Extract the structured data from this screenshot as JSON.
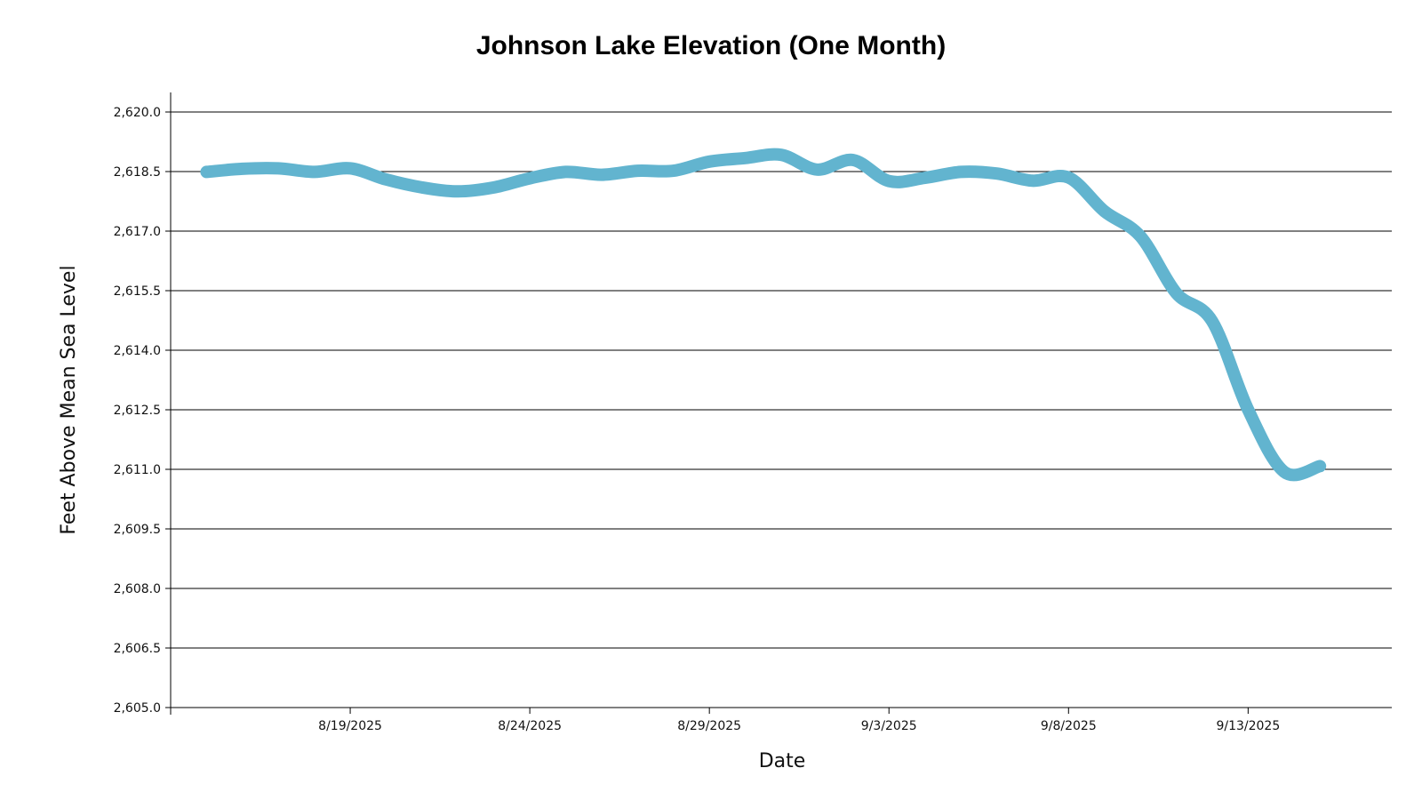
{
  "chart_data": {
    "type": "line",
    "title": "Johnson Lake Elevation (One Month)",
    "xlabel": "Date",
    "ylabel": "Feet Above Mean Sea Level",
    "ylim": [
      2605.0,
      2620.0
    ],
    "y_ticks": [
      "2,605.0",
      "2,606.5",
      "2,608.0",
      "2,609.5",
      "2,611.0",
      "2,612.5",
      "2,614.0",
      "2,615.5",
      "2,617.0",
      "2,618.5",
      "2,620.0"
    ],
    "x_ticks": [
      "8/19/2025",
      "8/24/2025",
      "8/29/2025",
      "9/3/2025",
      "9/8/2025",
      "9/13/2025"
    ],
    "x_tick_dates": [
      "2025-08-19",
      "2025-08-24",
      "2025-08-29",
      "2025-09-03",
      "2025-09-08",
      "2025-09-13"
    ],
    "xlim": [
      "2025-08-14",
      "2025-09-17"
    ],
    "grid": true,
    "series": [
      {
        "color": "#62b4cf",
        "x": [
          "2025-08-15",
          "2025-08-16",
          "2025-08-17",
          "2025-08-18",
          "2025-08-19",
          "2025-08-20",
          "2025-08-21",
          "2025-08-22",
          "2025-08-23",
          "2025-08-24",
          "2025-08-25",
          "2025-08-26",
          "2025-08-27",
          "2025-08-28",
          "2025-08-29",
          "2025-08-30",
          "2025-08-31",
          "2025-09-01",
          "2025-09-02",
          "2025-09-03",
          "2025-09-04",
          "2025-09-05",
          "2025-09-06",
          "2025-09-07",
          "2025-09-08",
          "2025-09-09",
          "2025-09-10",
          "2025-09-11",
          "2025-09-12",
          "2025-09-13",
          "2025-09-14",
          "2025-09-15"
        ],
        "y": [
          2618.49,
          2618.57,
          2618.58,
          2618.49,
          2618.58,
          2618.3,
          2618.1,
          2618.0,
          2618.1,
          2618.33,
          2618.49,
          2618.42,
          2618.52,
          2618.52,
          2618.75,
          2618.84,
          2618.92,
          2618.55,
          2618.79,
          2618.26,
          2618.34,
          2618.49,
          2618.45,
          2618.27,
          2618.35,
          2617.5,
          2616.87,
          2615.44,
          2614.73,
          2612.5,
          2610.94,
          2611.08
        ]
      }
    ]
  }
}
